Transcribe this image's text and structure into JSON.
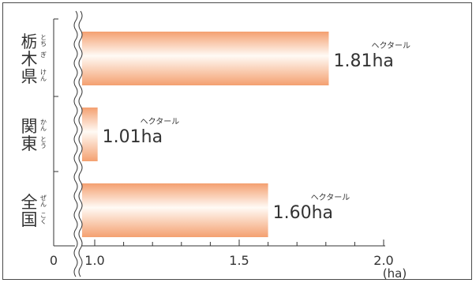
{
  "chart_data": {
    "type": "bar",
    "orientation": "horizontal",
    "categories": [
      {
        "label_chars": [
          "栃",
          "木",
          "県"
        ],
        "ruby": [
          "とち",
          "ぎ",
          "けん"
        ]
      },
      {
        "label_chars": [
          "関",
          "東"
        ],
        "ruby": [
          "かん",
          "とう"
        ]
      },
      {
        "label_chars": [
          "全",
          "国"
        ],
        "ruby": [
          "ぜん",
          "こく"
        ]
      }
    ],
    "values": [
      1.81,
      1.01,
      1.6
    ],
    "value_labels": [
      "1.81ha",
      "1.01ha",
      "1.60ha"
    ],
    "unit_ruby": "ヘクタール",
    "axis_break": true,
    "x_ticks": [
      "0",
      "1.0",
      "1.5",
      "2.0"
    ],
    "x_unit": "(ha)",
    "xlim_after_break": [
      0.9,
      2.0
    ],
    "colors": {
      "bar_edge": "#f4a070",
      "bar_center": "#fffaf5",
      "axis": "#333333",
      "break": "#333333"
    }
  }
}
